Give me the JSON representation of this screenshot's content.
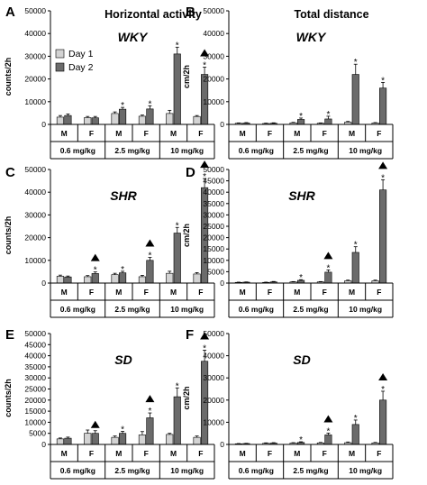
{
  "columns": [
    {
      "title": "Horizontal activity"
    },
    {
      "title": "Total distance"
    }
  ],
  "colors": {
    "day1": "#d3d3d3",
    "day2": "#6b6b6b",
    "stroke": "#000000"
  },
  "legend": {
    "day1": "Day 1",
    "day2": "Day 2"
  },
  "chart_data": [
    {
      "panel": "A",
      "type": "bar",
      "title": "WKY",
      "ylabel": "counts/2h",
      "ylim": [
        0,
        50000
      ],
      "yticks": [
        0,
        10000,
        20000,
        30000,
        40000,
        50000
      ],
      "categories": [
        "M",
        "F",
        "M",
        "F",
        "M",
        "F"
      ],
      "groups": [
        "0.6 mg/kg",
        "2.5 mg/kg",
        "10 mg/kg"
      ],
      "series": [
        {
          "name": "Day 1",
          "values": [
            3200,
            3000,
            4800,
            3600,
            4800,
            3500
          ],
          "errors": [
            700,
            500,
            700,
            500,
            1400,
            400
          ]
        },
        {
          "name": "Day 2",
          "values": [
            3900,
            2900,
            6700,
            6800,
            31000,
            22000
          ],
          "errors": [
            700,
            600,
            800,
            1400,
            3000,
            3200
          ]
        }
      ],
      "annotations": [
        {
          "index": 2,
          "marks": [
            "*"
          ]
        },
        {
          "index": 3,
          "marks": [
            "*"
          ]
        },
        {
          "index": 4,
          "marks": [
            "*"
          ]
        },
        {
          "index": 5,
          "marks": [
            "▲",
            "*"
          ]
        }
      ]
    },
    {
      "panel": "B",
      "type": "bar",
      "title": "WKY",
      "ylabel": "cm/2h",
      "ylim": [
        0,
        50000
      ],
      "yticks": [
        0,
        10000,
        20000,
        30000,
        40000,
        50000
      ],
      "categories": [
        "M",
        "F",
        "M",
        "F",
        "M",
        "F"
      ],
      "groups": [
        "0.6 mg/kg",
        "2.5 mg/kg",
        "10 mg/kg"
      ],
      "series": [
        {
          "name": "Day 1",
          "values": [
            500,
            400,
            700,
            500,
            1000,
            600
          ],
          "errors": [
            150,
            150,
            200,
            150,
            300,
            200
          ]
        },
        {
          "name": "Day 2",
          "values": [
            600,
            500,
            2200,
            2400,
            22000,
            16000
          ],
          "errors": [
            200,
            200,
            600,
            1200,
            4500,
            2500
          ]
        }
      ],
      "annotations": [
        {
          "index": 2,
          "marks": [
            "*"
          ]
        },
        {
          "index": 3,
          "marks": [
            "*"
          ]
        },
        {
          "index": 4,
          "marks": [
            "*"
          ]
        },
        {
          "index": 5,
          "marks": [
            "*"
          ]
        }
      ]
    },
    {
      "panel": "C",
      "type": "bar",
      "title": "SHR",
      "ylabel": "counts/2h",
      "ylim": [
        0,
        50000
      ],
      "yticks": [
        0,
        10000,
        20000,
        30000,
        40000,
        50000
      ],
      "categories": [
        "M",
        "F",
        "M",
        "F",
        "M",
        "F"
      ],
      "groups": [
        "0.6 mg/kg",
        "2.5 mg/kg",
        "10 mg/kg"
      ],
      "series": [
        {
          "name": "Day 1",
          "values": [
            3000,
            2800,
            3700,
            2800,
            4300,
            4000
          ],
          "errors": [
            500,
            500,
            600,
            600,
            900,
            600
          ]
        },
        {
          "name": "Day 2",
          "values": [
            2700,
            4200,
            4500,
            10000,
            22000,
            42000
          ],
          "errors": [
            400,
            700,
            700,
            1300,
            2500,
            4000
          ]
        }
      ],
      "annotations": [
        {
          "index": 1,
          "marks": [
            "▲",
            "*"
          ]
        },
        {
          "index": 2,
          "marks": [
            "*"
          ]
        },
        {
          "index": 3,
          "marks": [
            "▲",
            "*"
          ]
        },
        {
          "index": 4,
          "marks": [
            "*"
          ]
        },
        {
          "index": 5,
          "marks": [
            "▲",
            "*"
          ]
        }
      ]
    },
    {
      "panel": "D",
      "type": "bar",
      "title": "SHR",
      "ylabel": "cm/2h",
      "ylim": [
        0,
        50000
      ],
      "yticks": [
        0,
        5000,
        10000,
        15000,
        20000,
        25000,
        30000,
        35000,
        40000,
        45000,
        50000
      ],
      "categories": [
        "M",
        "F",
        "M",
        "F",
        "M",
        "F"
      ],
      "groups": [
        "0.6 mg/kg",
        "2.5 mg/kg",
        "10 mg/kg"
      ],
      "series": [
        {
          "name": "Day 1",
          "values": [
            300,
            300,
            500,
            500,
            1000,
            1000
          ],
          "errors": [
            100,
            100,
            150,
            150,
            300,
            300
          ]
        },
        {
          "name": "Day 2",
          "values": [
            400,
            500,
            1200,
            4800,
            13500,
            41000
          ],
          "errors": [
            100,
            200,
            300,
            1000,
            2500,
            4500
          ]
        }
      ],
      "annotations": [
        {
          "index": 2,
          "marks": [
            "*"
          ]
        },
        {
          "index": 3,
          "marks": [
            "▲",
            "*"
          ]
        },
        {
          "index": 4,
          "marks": [
            "*"
          ]
        },
        {
          "index": 5,
          "marks": [
            "▲",
            "*"
          ]
        }
      ]
    },
    {
      "panel": "E",
      "type": "bar",
      "title": "SD",
      "ylabel": "counts/2h",
      "ylim": [
        0,
        50000
      ],
      "yticks": [
        0,
        5000,
        10000,
        15000,
        20000,
        25000,
        30000,
        35000,
        40000,
        45000,
        50000
      ],
      "categories": [
        "M",
        "F",
        "M",
        "F",
        "M",
        "F"
      ],
      "groups": [
        "0.6 mg/kg",
        "2.5 mg/kg",
        "10 mg/kg"
      ],
      "series": [
        {
          "name": "Day 1",
          "values": [
            2500,
            5000,
            3200,
            4300,
            4500,
            3200
          ],
          "errors": [
            400,
            1500,
            600,
            1500,
            500,
            600
          ]
        },
        {
          "name": "Day 2",
          "values": [
            2800,
            5000,
            5000,
            12000,
            21500,
            37500
          ],
          "errors": [
            500,
            1200,
            900,
            2200,
            4000,
            5000
          ]
        }
      ],
      "annotations": [
        {
          "index": 1,
          "marks": [
            "▲"
          ]
        },
        {
          "index": 2,
          "marks": [
            "*"
          ]
        },
        {
          "index": 3,
          "marks": [
            "▲",
            "*"
          ]
        },
        {
          "index": 4,
          "marks": [
            "*"
          ]
        },
        {
          "index": 5,
          "marks": [
            "▲",
            "*"
          ]
        }
      ]
    },
    {
      "panel": "F",
      "type": "bar",
      "title": "SD",
      "ylabel": "cm/2h",
      "ylim": [
        0,
        50000
      ],
      "yticks": [
        0,
        10000,
        20000,
        30000,
        40000,
        50000
      ],
      "categories": [
        "M",
        "F",
        "M",
        "F",
        "M",
        "F"
      ],
      "groups": [
        "0.6 mg/kg",
        "2.5 mg/kg",
        "10 mg/kg"
      ],
      "series": [
        {
          "name": "Day 1",
          "values": [
            300,
            500,
            600,
            700,
            800,
            700
          ],
          "errors": [
            100,
            200,
            200,
            200,
            300,
            200
          ]
        },
        {
          "name": "Day 2",
          "values": [
            400,
            600,
            900,
            4300,
            9000,
            20000
          ],
          "errors": [
            100,
            200,
            300,
            800,
            2000,
            4000
          ]
        }
      ],
      "annotations": [
        {
          "index": 2,
          "marks": [
            "*"
          ]
        },
        {
          "index": 3,
          "marks": [
            "▲",
            "*"
          ]
        },
        {
          "index": 4,
          "marks": [
            "*"
          ]
        },
        {
          "index": 5,
          "marks": [
            "▲",
            "*"
          ]
        }
      ]
    }
  ]
}
